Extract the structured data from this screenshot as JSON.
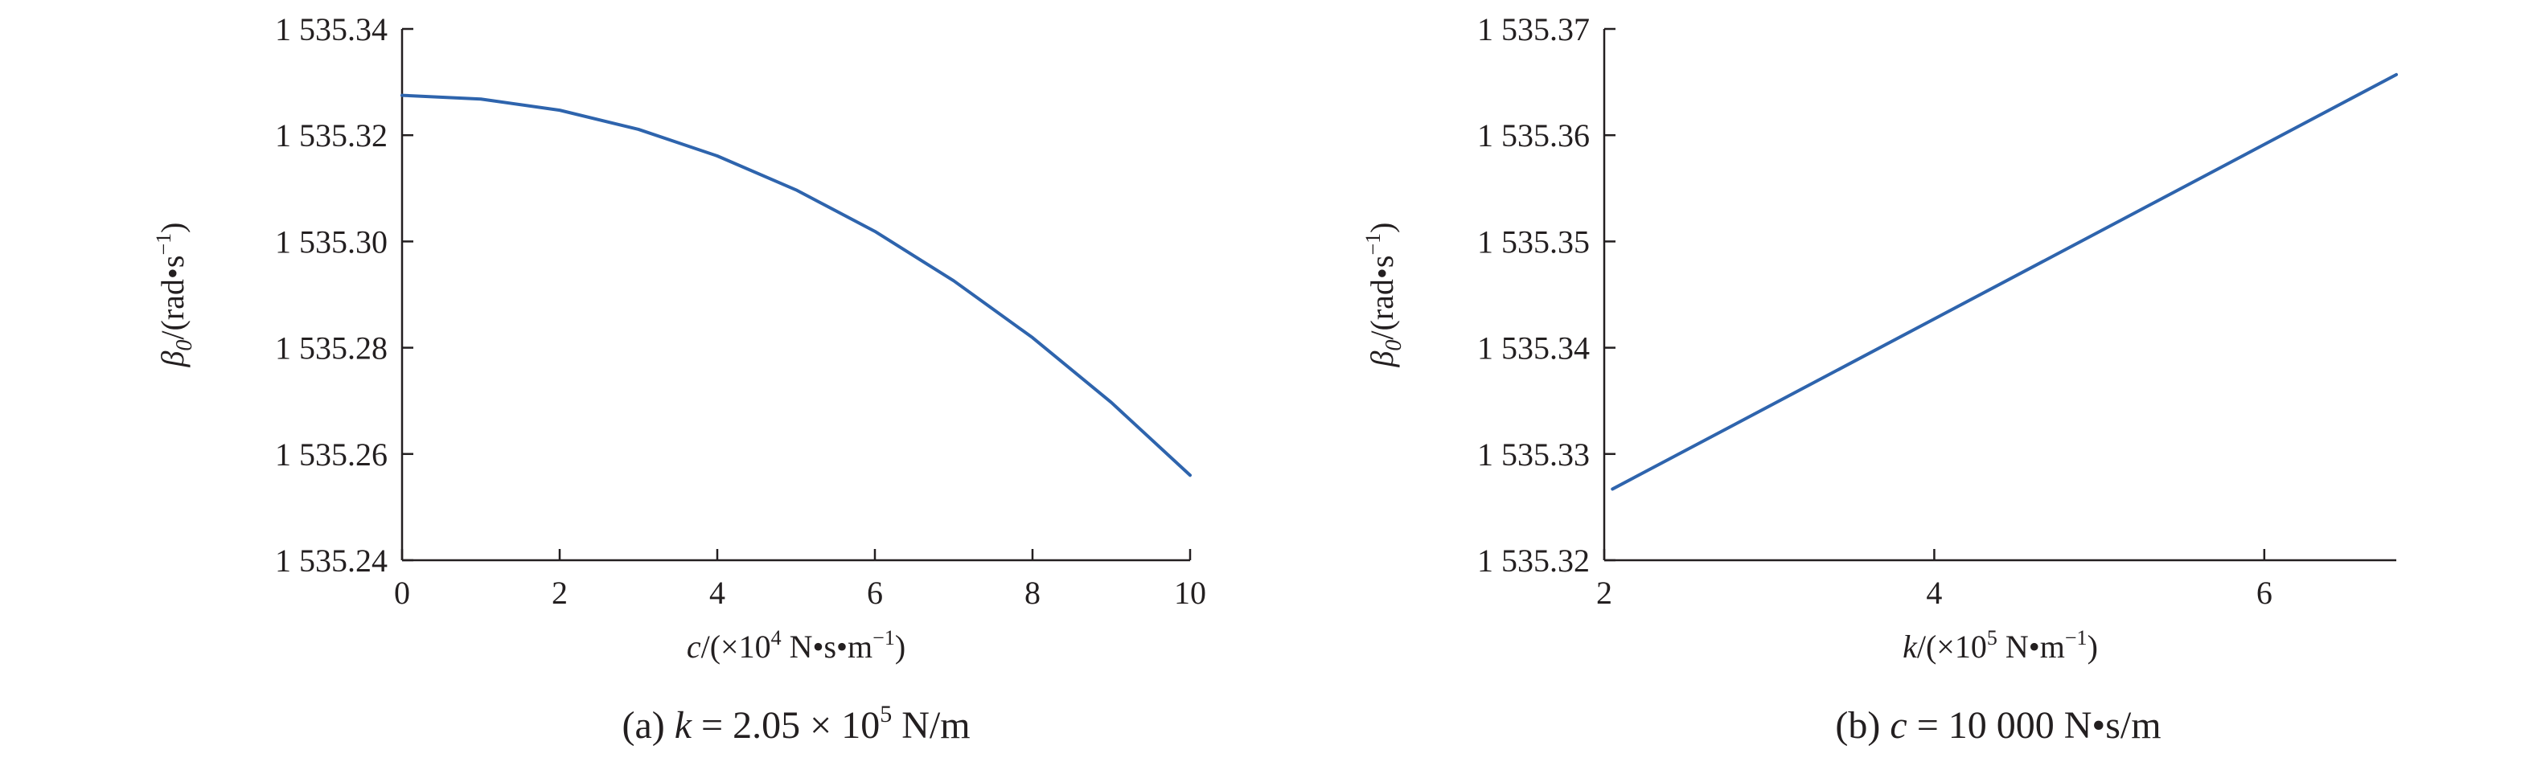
{
  "chart_data": [
    {
      "type": "line",
      "panel_caption": "(a)",
      "caption": {
        "var": "k",
        "text": " = 2.05 × 10",
        "sup": "5",
        "unit": " N/m"
      },
      "xlabel": {
        "var": "c",
        "text": "/(×10",
        "sup": "4",
        "rest": " N•s•m",
        "sup2": "−1",
        "close": ")"
      },
      "ylabel": {
        "var": "β",
        "sub": "0",
        "text": "/(rad•s",
        "sup": "−1",
        "close": ")"
      },
      "xlim": [
        0,
        10
      ],
      "ylim": [
        1535.24,
        1535.34
      ],
      "xticks": [
        0,
        2,
        4,
        6,
        8,
        10
      ],
      "xtick_labels": [
        "0",
        "2",
        "4",
        "6",
        "8",
        "10"
      ],
      "yticks": [
        1535.24,
        1535.26,
        1535.28,
        1535.3,
        1535.32,
        1535.34
      ],
      "ytick_labels": [
        "1 535.24",
        "1 535.26",
        "1 535.28",
        "1 535.30",
        "1 535.32",
        "1 535.34"
      ],
      "series": [
        {
          "color": "#2e64ad",
          "x": [
            0,
            1,
            2,
            3,
            4,
            5,
            6,
            7,
            8,
            9,
            10
          ],
          "y": [
            1535.3275,
            1535.3268,
            1535.3247,
            1535.3211,
            1535.3161,
            1535.3097,
            1535.3019,
            1535.2926,
            1535.2819,
            1535.2697,
            1535.256
          ]
        }
      ]
    },
    {
      "type": "line",
      "panel_caption": "(b)",
      "caption": {
        "var": "c",
        "text": " = 10 000 N•s/m"
      },
      "xlabel": {
        "var": "k",
        "text": "/(×10",
        "sup": "5",
        "rest": " N•m",
        "sup2": "−1",
        "close": ")"
      },
      "ylabel": {
        "var": "β",
        "sub": "0",
        "text": "/(rad•s",
        "sup": "−1",
        "close": ")"
      },
      "xlim": [
        2,
        6.8
      ],
      "ylim": [
        1535.32,
        1535.37
      ],
      "xticks": [
        2,
        4,
        6
      ],
      "xtick_labels": [
        "2",
        "4",
        "6"
      ],
      "yticks": [
        1535.32,
        1535.33,
        1535.34,
        1535.35,
        1535.36,
        1535.37
      ],
      "ytick_labels": [
        "1 535.32",
        "1 535.33",
        "1 535.34",
        "1 535.35",
        "1 535.36",
        "1 535.37"
      ],
      "series": [
        {
          "color": "#2e64ad",
          "x": [
            2.05,
            6.8
          ],
          "y": [
            1535.3267,
            1535.3657
          ]
        }
      ]
    }
  ]
}
